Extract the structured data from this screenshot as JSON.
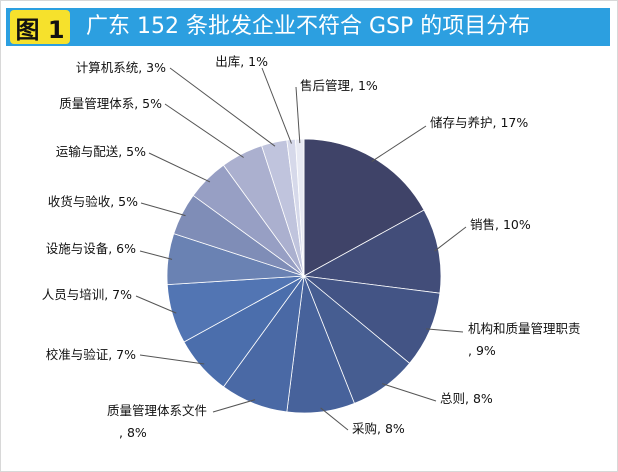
{
  "header": {
    "figure_label": "图 1",
    "title": "广东 152 条批发企业不符合 GSP 的项目分布"
  },
  "chart_data": {
    "type": "pie",
    "title": "广东 152 条批发企业不符合 GSP 的项目分布",
    "unit": "%",
    "slices": [
      {
        "label": "储存与养护, 17%",
        "value": 17,
        "color": "#3f4368"
      },
      {
        "label": "销售, 10%",
        "value": 10,
        "color": "#424d79"
      },
      {
        "label": "机构和质量管理职责, 9%",
        "value": 9,
        "color": "#435485"
      },
      {
        "label": "总则, 8%",
        "value": 8,
        "color": "#465d91"
      },
      {
        "label": "采购, 8%",
        "value": 8,
        "color": "#47629b"
      },
      {
        "label": "质量管理体系文件, 8%",
        "value": 8,
        "color": "#4a69a5"
      },
      {
        "label": "校准与验证, 7%",
        "value": 7,
        "color": "#4b6eac"
      },
      {
        "label": "人员与培训, 7%",
        "value": 7,
        "color": "#5275b3"
      },
      {
        "label": "设施与设备, 6%",
        "value": 6,
        "color": "#6a82b3"
      },
      {
        "label": "收货与验收, 5%",
        "value": 5,
        "color": "#7f8db7"
      },
      {
        "label": "运输与配送, 5%",
        "value": 5,
        "color": "#979fc4"
      },
      {
        "label": "质量管理体系, 5%",
        "value": 5,
        "color": "#abb0cf"
      },
      {
        "label": "计算机系统, 3%",
        "value": 3,
        "color": "#c0c4dd"
      },
      {
        "label": "出库, 1%",
        "value": 1,
        "color": "#d6d9ea"
      },
      {
        "label": "售后管理, 1%",
        "value": 1,
        "color": "#e8eaf3"
      }
    ]
  }
}
